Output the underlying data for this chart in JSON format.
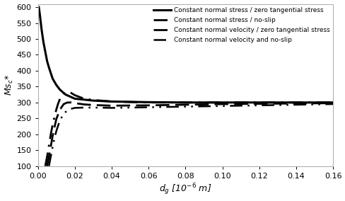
{
  "title": "",
  "xlabel": "$d_g$ [10$^{-6}$ m]",
  "ylabel": "$Ms_c$*",
  "xlim": [
    0,
    0.16
  ],
  "ylim": [
    100,
    610
  ],
  "yticks": [
    100,
    150,
    200,
    250,
    300,
    350,
    400,
    450,
    500,
    550,
    600
  ],
  "xticks": [
    0.0,
    0.02,
    0.04,
    0.06,
    0.08,
    0.1,
    0.12,
    0.14,
    0.16
  ],
  "background_color": "#ffffff",
  "legend_entries": [
    "Constant normal stress / zero tangential stress",
    "Constant normal stress / no-slip",
    "Constant normal velocity / zero tangential stress",
    "Constant normal velocity and no-slip"
  ],
  "curve1_x": [
    0.0005,
    0.001,
    0.0015,
    0.002,
    0.003,
    0.004,
    0.005,
    0.006,
    0.008,
    0.01,
    0.012,
    0.015,
    0.02,
    0.03,
    0.04,
    0.05,
    0.06,
    0.08,
    0.1,
    0.12,
    0.14,
    0.16
  ],
  "curve1_y": [
    600,
    580,
    555,
    530,
    490,
    460,
    430,
    410,
    375,
    355,
    340,
    325,
    312,
    306,
    303,
    302,
    301,
    300,
    300,
    300,
    300,
    300
  ],
  "curve2_x": [
    0.004,
    0.005,
    0.006,
    0.007,
    0.008,
    0.009,
    0.01,
    0.011,
    0.012,
    0.014,
    0.016,
    0.018,
    0.02,
    0.025,
    0.03,
    0.04,
    0.06,
    0.08,
    0.1,
    0.12,
    0.14,
    0.16
  ],
  "curve2_y": [
    100,
    130,
    165,
    200,
    230,
    255,
    278,
    297,
    312,
    328,
    333,
    330,
    323,
    312,
    308,
    303,
    300,
    300,
    300,
    300,
    300,
    300
  ],
  "curve3_x": [
    0.005,
    0.006,
    0.007,
    0.008,
    0.009,
    0.01,
    0.012,
    0.014,
    0.016,
    0.018,
    0.02,
    0.025,
    0.03,
    0.04,
    0.06,
    0.08,
    0.1,
    0.12,
    0.14,
    0.16
  ],
  "curve3_y": [
    100,
    130,
    162,
    195,
    222,
    248,
    278,
    295,
    300,
    300,
    298,
    294,
    292,
    290,
    291,
    293,
    295,
    296,
    297,
    298
  ],
  "curve4_x": [
    0.006,
    0.007,
    0.008,
    0.009,
    0.01,
    0.011,
    0.012,
    0.014,
    0.016,
    0.018,
    0.02,
    0.025,
    0.03,
    0.04,
    0.06,
    0.08,
    0.1,
    0.12,
    0.14,
    0.16
  ],
  "curve4_y": [
    100,
    130,
    160,
    188,
    210,
    228,
    244,
    265,
    275,
    280,
    283,
    284,
    284,
    283,
    285,
    287,
    289,
    291,
    293,
    295
  ]
}
